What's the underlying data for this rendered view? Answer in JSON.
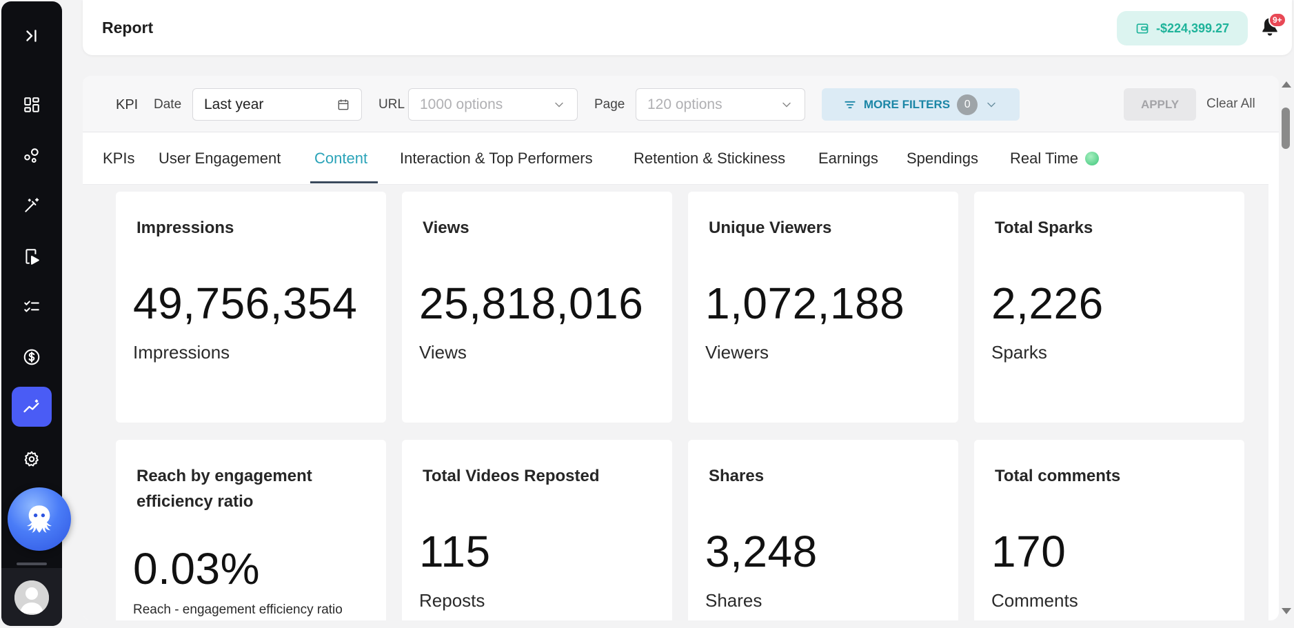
{
  "header": {
    "title": "Report",
    "balance": "-$224,399.27",
    "notifications_badge": "9+"
  },
  "sidebar": {
    "items": [
      {
        "icon": "collapse-icon"
      },
      {
        "icon": "dashboard-icon"
      },
      {
        "icon": "nodes-icon"
      },
      {
        "icon": "magic-wand-icon"
      },
      {
        "icon": "video-play-icon"
      },
      {
        "icon": "checklist-icon"
      },
      {
        "icon": "dollar-icon"
      },
      {
        "icon": "analytics-icon",
        "active": true
      },
      {
        "icon": "gear-icon"
      }
    ],
    "accent": "#4a5cf5"
  },
  "filters": {
    "kpi_label": "KPI",
    "date_label": "Date",
    "date_value": "Last year",
    "url_label": "URL",
    "url_placeholder": "1000 options",
    "page_label": "Page",
    "page_placeholder": "120 options",
    "more_filters_label": "MORE FILTERS",
    "more_filters_count": "0",
    "apply_label": "APPLY",
    "clear_label": "Clear All"
  },
  "tabs": [
    {
      "label": "KPIs"
    },
    {
      "label": "User Engagement"
    },
    {
      "label": "Content",
      "active": true
    },
    {
      "label": "Interaction & Top Performers"
    },
    {
      "label": "Retention & Stickiness"
    },
    {
      "label": "Earnings"
    },
    {
      "label": "Spendings"
    },
    {
      "label": "Real Time"
    }
  ],
  "cards": [
    {
      "title": "Impressions",
      "value": "49,756,354",
      "unit": "Impressions"
    },
    {
      "title": "Views",
      "value": "25,818,016",
      "unit": "Views"
    },
    {
      "title": "Unique Viewers",
      "value": "1,072,188",
      "unit": "Viewers"
    },
    {
      "title": "Total Sparks",
      "value": "2,226",
      "unit": "Sparks"
    },
    {
      "title": "Reach by engagement efficiency ratio",
      "value": "0.03%",
      "unit": "Reach - engagement efficiency ratio"
    },
    {
      "title": "Total Videos Reposted",
      "value": "115",
      "unit": "Reposts"
    },
    {
      "title": "Shares",
      "value": "3,248",
      "unit": "Shares"
    },
    {
      "title": "Total comments",
      "value": "170",
      "unit": "Comments"
    }
  ],
  "colors": {
    "tab_active": "#2aa3b8",
    "balance_text": "#1eb39a",
    "balance_bg": "#dcf4f0",
    "more_filters_bg": "#dcebf5"
  }
}
